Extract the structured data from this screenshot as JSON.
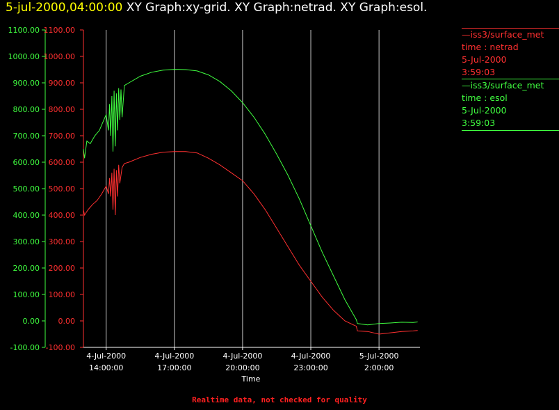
{
  "header": {
    "timestamp": "5-jul-2000,04:00:00",
    "title": "XY Graph:xy-grid.  XY Graph:netrad.  XY Graph:esol."
  },
  "footer": {
    "note": "Realtime data, not checked for quality"
  },
  "legend": [
    {
      "source": "iss3/surface_met",
      "variable": "time : netrad",
      "date": "5-Jul-2000",
      "time": "3:59:03",
      "color": "#ff3030"
    },
    {
      "source": "iss3/surface_met",
      "variable": "time : esol",
      "date": "5-Jul-2000",
      "time": "3:59:03",
      "color": "#40ff40"
    }
  ],
  "colors": {
    "netrad": "#ff3030",
    "esol": "#40ff40",
    "grid": "#c8c8c8",
    "axis": "#ffffff",
    "footer": "#ff2020"
  },
  "chart_data": {
    "type": "line",
    "xlabel": "Time",
    "x_range_hours": [
      13.0,
      27.8
    ],
    "x_ticks": [
      {
        "h": 14,
        "date": "4-Jul-2000",
        "time": "14:00:00"
      },
      {
        "h": 17,
        "date": "4-Jul-2000",
        "time": "17:00:00"
      },
      {
        "h": 20,
        "date": "4-Jul-2000",
        "time": "20:00:00"
      },
      {
        "h": 23,
        "date": "4-Jul-2000",
        "time": "23:00:00"
      },
      {
        "h": 26,
        "date": "5-Jul-2000",
        "time": "2:00:00"
      }
    ],
    "ylim": [
      -100,
      1100
    ],
    "y_ticks": [
      "1100.00",
      "1000.00",
      "900.00",
      "800.00",
      "700.00",
      "600.00",
      "500.00",
      "400.00",
      "300.00",
      "200.00",
      "100.00",
      "0.00",
      "-100.00"
    ],
    "grid": "vertical lines at x ticks",
    "series": [
      {
        "name": "time : esol",
        "color": "#40ff40",
        "points": [
          [
            13.0,
            650
          ],
          [
            13.05,
            615
          ],
          [
            13.15,
            680
          ],
          [
            13.3,
            670
          ],
          [
            13.5,
            700
          ],
          [
            13.7,
            720
          ],
          [
            13.9,
            760
          ],
          [
            14.0,
            780
          ],
          [
            14.1,
            720
          ],
          [
            14.15,
            820
          ],
          [
            14.2,
            700
          ],
          [
            14.25,
            850
          ],
          [
            14.3,
            640
          ],
          [
            14.35,
            870
          ],
          [
            14.4,
            660
          ],
          [
            14.45,
            860
          ],
          [
            14.5,
            720
          ],
          [
            14.55,
            880
          ],
          [
            14.6,
            760
          ],
          [
            14.65,
            875
          ],
          [
            14.7,
            770
          ],
          [
            14.8,
            890
          ],
          [
            15.0,
            900
          ],
          [
            15.5,
            925
          ],
          [
            16.0,
            940
          ],
          [
            16.5,
            948
          ],
          [
            17.0,
            951
          ],
          [
            17.5,
            950
          ],
          [
            18.0,
            945
          ],
          [
            18.5,
            930
          ],
          [
            19.0,
            905
          ],
          [
            19.5,
            870
          ],
          [
            20.0,
            825
          ],
          [
            20.5,
            770
          ],
          [
            21.0,
            705
          ],
          [
            21.5,
            630
          ],
          [
            22.0,
            550
          ],
          [
            22.5,
            460
          ],
          [
            23.0,
            360
          ],
          [
            23.5,
            260
          ],
          [
            24.0,
            170
          ],
          [
            24.5,
            80
          ],
          [
            25.0,
            5
          ],
          [
            25.05,
            -10
          ],
          [
            25.5,
            -15
          ],
          [
            26.0,
            -10
          ],
          [
            26.5,
            -8
          ],
          [
            27.0,
            -5
          ],
          [
            27.5,
            -6
          ],
          [
            27.7,
            -4
          ]
        ]
      },
      {
        "name": "time : netrad",
        "color": "#ff3030",
        "points": [
          [
            13.0,
            420
          ],
          [
            13.05,
            400
          ],
          [
            13.2,
            420
          ],
          [
            13.4,
            440
          ],
          [
            13.6,
            455
          ],
          [
            13.8,
            480
          ],
          [
            14.0,
            510
          ],
          [
            14.1,
            480
          ],
          [
            14.15,
            540
          ],
          [
            14.2,
            470
          ],
          [
            14.25,
            560
          ],
          [
            14.3,
            420
          ],
          [
            14.35,
            575
          ],
          [
            14.4,
            400
          ],
          [
            14.45,
            570
          ],
          [
            14.5,
            470
          ],
          [
            14.55,
            590
          ],
          [
            14.6,
            520
          ],
          [
            14.7,
            580
          ],
          [
            14.8,
            595
          ],
          [
            15.0,
            600
          ],
          [
            15.5,
            618
          ],
          [
            16.0,
            630
          ],
          [
            16.5,
            638
          ],
          [
            17.0,
            640
          ],
          [
            17.5,
            640
          ],
          [
            18.0,
            635
          ],
          [
            18.5,
            615
          ],
          [
            19.0,
            590
          ],
          [
            19.5,
            560
          ],
          [
            20.0,
            530
          ],
          [
            20.5,
            480
          ],
          [
            21.0,
            420
          ],
          [
            21.5,
            350
          ],
          [
            22.0,
            280
          ],
          [
            22.5,
            210
          ],
          [
            23.0,
            150
          ],
          [
            23.5,
            90
          ],
          [
            24.0,
            40
          ],
          [
            24.5,
            0
          ],
          [
            25.0,
            -20
          ],
          [
            25.05,
            -38
          ],
          [
            25.5,
            -40
          ],
          [
            26.0,
            -50
          ],
          [
            26.5,
            -45
          ],
          [
            27.0,
            -40
          ],
          [
            27.5,
            -38
          ],
          [
            27.7,
            -36
          ]
        ]
      }
    ]
  }
}
